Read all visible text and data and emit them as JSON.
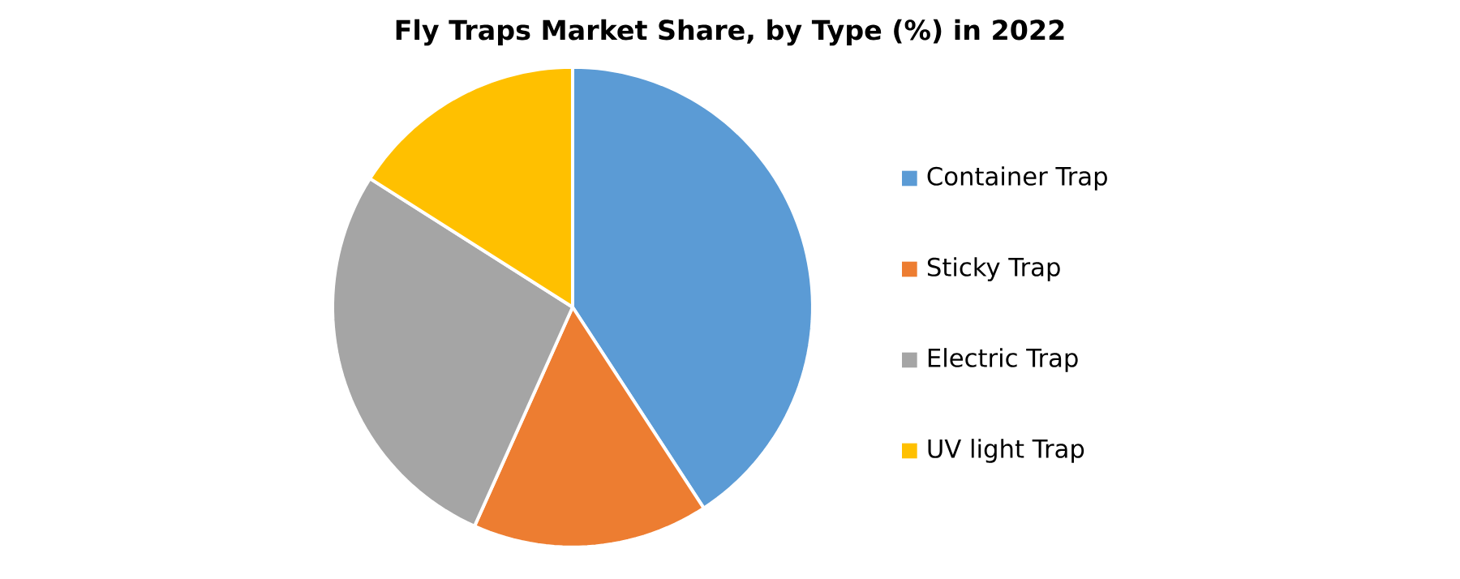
{
  "chart_data": {
    "type": "pie",
    "title": "Fly Traps Market Share, by Type (%) in 2022",
    "categories": [
      "Container Trap",
      "Sticky Trap",
      "Electric Trap",
      "UV light Trap"
    ],
    "values": [
      40.8,
      15.9,
      27.3,
      16.0
    ],
    "colors": [
      "#5b9bd5",
      "#ed7d31",
      "#a5a5a5",
      "#ffc000"
    ],
    "legend": "right"
  }
}
